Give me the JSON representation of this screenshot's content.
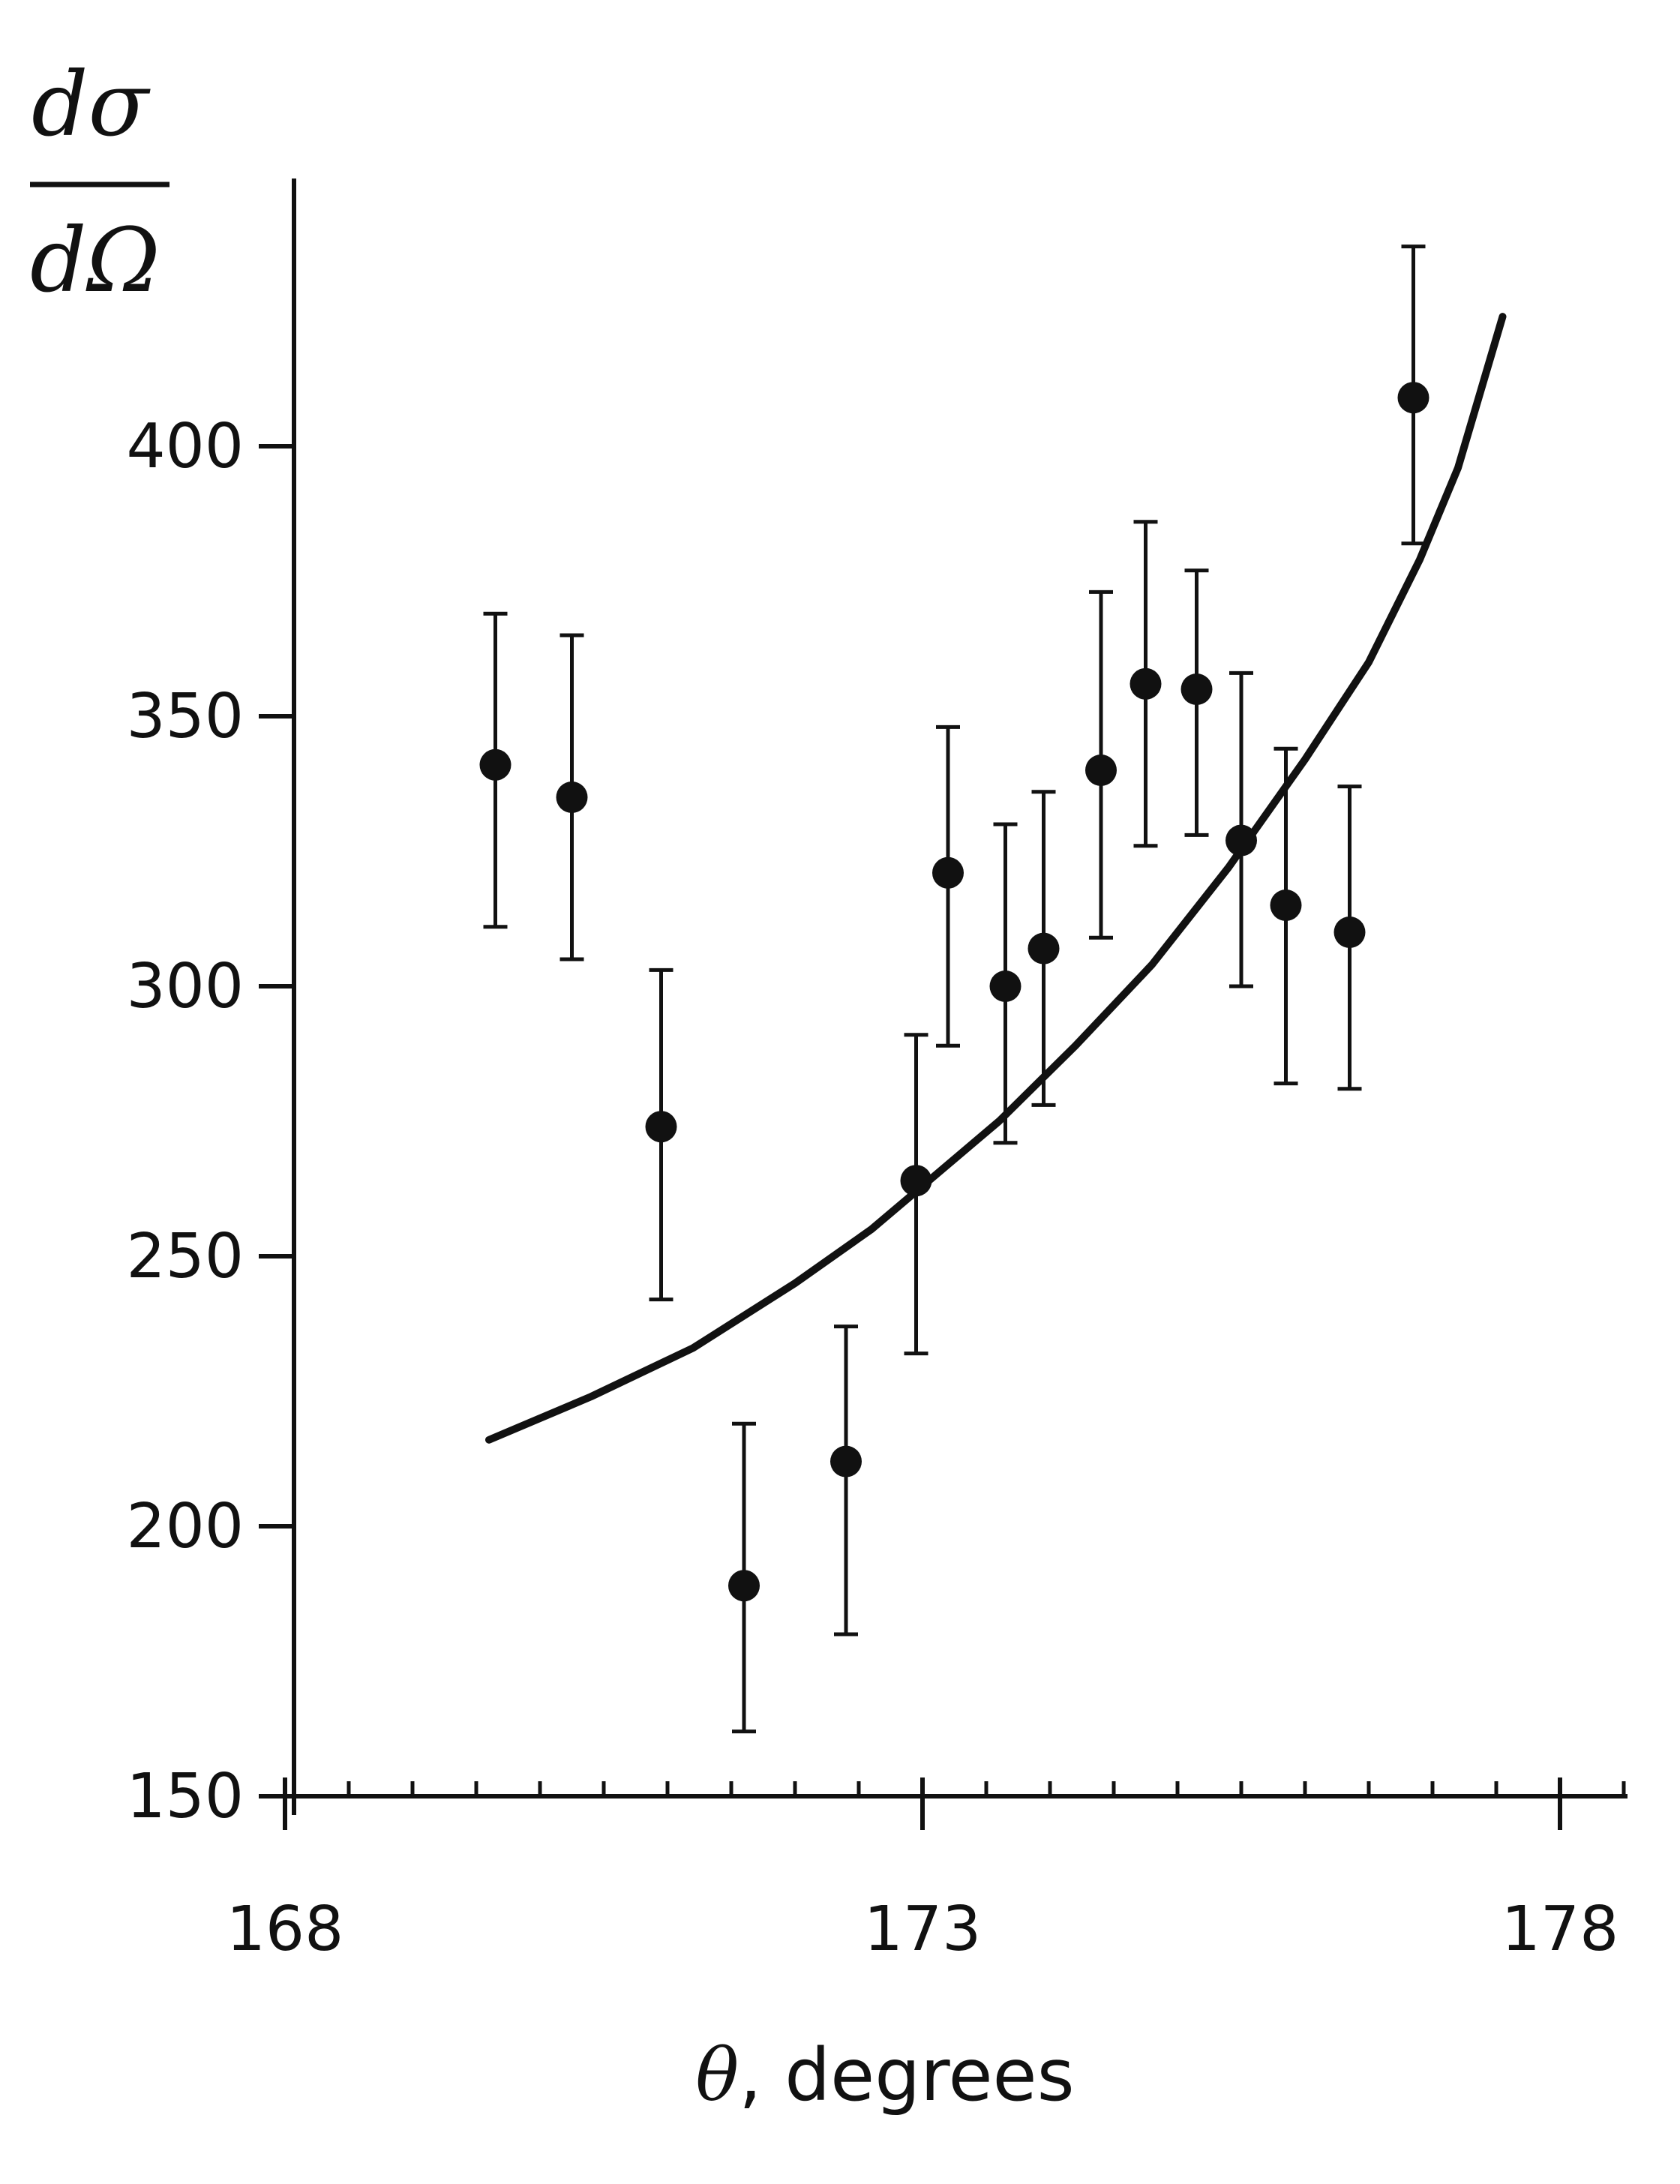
{
  "chart_data": {
    "type": "scatter",
    "ylabel": {
      "numerator": "dσ",
      "denominator": "dΩ"
    },
    "xlabel": {
      "symbol": "θ",
      "rest": ", degrees"
    },
    "x_ticks_labeled": [
      "168",
      "173",
      "178"
    ],
    "x_tick_values": [
      168,
      173,
      178
    ],
    "x_minor_step": 0.5,
    "y_ticks": [
      "150",
      "200",
      "250",
      "300",
      "350",
      "400"
    ],
    "y_tick_values": [
      150,
      200,
      250,
      300,
      350,
      400
    ],
    "xlim": [
      168,
      178.5
    ],
    "ylim": [
      150,
      450
    ],
    "grid": false,
    "colors": {
      "ink": "#111111",
      "background": "#ffffff"
    },
    "series": [
      {
        "type": "scatter_errorbars",
        "points": [
          {
            "x": 169.65,
            "y": 341,
            "err_lo": 311,
            "err_hi": 369
          },
          {
            "x": 170.25,
            "y": 335,
            "err_lo": 305,
            "err_hi": 365
          },
          {
            "x": 170.95,
            "y": 274,
            "err_lo": 242,
            "err_hi": 303
          },
          {
            "x": 171.6,
            "y": 189,
            "err_lo": 162,
            "err_hi": 219
          },
          {
            "x": 172.4,
            "y": 212,
            "err_lo": 180,
            "err_hi": 237
          },
          {
            "x": 172.95,
            "y": 264,
            "err_lo": 232,
            "err_hi": 291
          },
          {
            "x": 173.2,
            "y": 321,
            "err_lo": 289,
            "err_hi": 348
          },
          {
            "x": 173.65,
            "y": 300,
            "err_lo": 271,
            "err_hi": 330
          },
          {
            "x": 173.95,
            "y": 307,
            "err_lo": 278,
            "err_hi": 336
          },
          {
            "x": 174.4,
            "y": 340,
            "err_lo": 309,
            "err_hi": 373
          },
          {
            "x": 174.75,
            "y": 356,
            "err_lo": 326,
            "err_hi": 386
          },
          {
            "x": 175.15,
            "y": 355,
            "err_lo": 328,
            "err_hi": 377
          },
          {
            "x": 175.5,
            "y": 327,
            "err_lo": 300,
            "err_hi": 358
          },
          {
            "x": 175.85,
            "y": 315,
            "err_lo": 282,
            "err_hi": 344
          },
          {
            "x": 176.35,
            "y": 310,
            "err_lo": 281,
            "err_hi": 337
          },
          {
            "x": 176.85,
            "y": 409,
            "err_lo": 382,
            "err_hi": 437
          }
        ]
      },
      {
        "type": "line",
        "x": [
          169.6,
          170.4,
          171.2,
          172.0,
          172.6,
          173.0,
          173.6,
          174.2,
          174.8,
          175.4,
          176.0,
          176.5,
          176.9,
          177.2,
          177.55
        ],
        "y": [
          216,
          224,
          233,
          245,
          255,
          263,
          275,
          289,
          304,
          322,
          342,
          360,
          379,
          396,
          424
        ]
      }
    ]
  }
}
